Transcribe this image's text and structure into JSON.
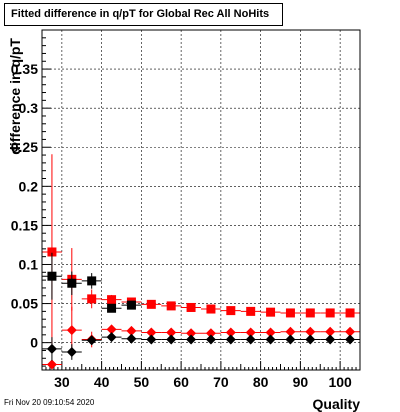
{
  "chart_data": {
    "type": "scatter",
    "title": "Fitted difference in q/pT  for Global Rec All NoHits",
    "xlabel": "Quality",
    "ylabel": "difference in q/pT",
    "xlim": [
      25,
      105
    ],
    "ylim": [
      -0.035,
      0.4
    ],
    "xticks": [
      30,
      40,
      50,
      60,
      70,
      80,
      90,
      100
    ],
    "yticks": [
      0,
      0.05,
      0.1,
      0.15,
      0.2,
      0.25,
      0.3,
      0.35
    ],
    "ytick_labels": [
      "0",
      "0.05",
      "0.1",
      "0.15",
      "0.2",
      "0.25",
      "0.3",
      "0.35"
    ],
    "grid": true,
    "series": [
      {
        "marker": "square",
        "color": "#ff0000",
        "x": [
          27.5,
          32.5,
          37.5,
          42.5,
          47.5,
          52.5,
          57.5,
          62.5,
          67.5,
          72.5,
          77.5,
          82.5,
          87.5,
          92.5,
          97.5,
          102.5
        ],
        "y": [
          0.116,
          0.081,
          0.056,
          0.055,
          0.052,
          0.049,
          0.047,
          0.045,
          0.043,
          0.041,
          0.04,
          0.039,
          0.038,
          0.038,
          0.038,
          0.038
        ],
        "yerr": [
          0.125,
          0.04,
          0.012,
          0.006,
          0.004,
          0.003,
          0.002,
          0.002,
          0.002,
          0.002,
          0.002,
          0.002,
          0.002,
          0.002,
          0.002,
          0.002
        ]
      },
      {
        "marker": "square",
        "color": "#000000",
        "x": [
          27.5,
          32.5,
          37.5,
          42.5,
          47.5
        ],
        "y": [
          0.085,
          0.076,
          0.079,
          0.044,
          0.048
        ],
        "yerr": [
          0.03,
          0.015,
          0.01,
          0.005,
          0.004
        ]
      },
      {
        "marker": "diamond",
        "color": "#ff0000",
        "x": [
          27.5,
          32.5,
          37.5,
          42.5,
          47.5,
          52.5,
          57.5,
          62.5,
          67.5,
          72.5,
          77.5,
          82.5,
          87.5,
          92.5,
          97.5,
          102.5
        ],
        "y": [
          -0.028,
          0.016,
          0.004,
          0.017,
          0.015,
          0.013,
          0.013,
          0.012,
          0.012,
          0.013,
          0.013,
          0.013,
          0.014,
          0.014,
          0.014,
          0.014
        ],
        "yerr": [
          0.0,
          0.03,
          0.01,
          0.004,
          0.003,
          0.002,
          0.002,
          0.002,
          0.002,
          0.002,
          0.002,
          0.002,
          0.002,
          0.002,
          0.002,
          0.002
        ]
      },
      {
        "marker": "diamond",
        "color": "#000000",
        "x": [
          27.5,
          32.5,
          37.5,
          42.5,
          47.5,
          52.5,
          57.5,
          62.5,
          67.5,
          72.5,
          77.5,
          82.5,
          87.5,
          92.5,
          97.5,
          102.5
        ],
        "y": [
          -0.008,
          -0.012,
          0.003,
          0.007,
          0.005,
          0.004,
          0.004,
          0.004,
          0.004,
          0.004,
          0.004,
          0.004,
          0.004,
          0.004,
          0.004,
          0.004
        ],
        "yerr": [
          0.015,
          0.01,
          0.006,
          0.003,
          0.002,
          0.002,
          0.001,
          0.001,
          0.001,
          0.001,
          0.001,
          0.001,
          0.001,
          0.001,
          0.001,
          0.001
        ]
      }
    ]
  },
  "footer": {
    "timestamp": "Fri Nov 20 09:10:54 2020"
  }
}
